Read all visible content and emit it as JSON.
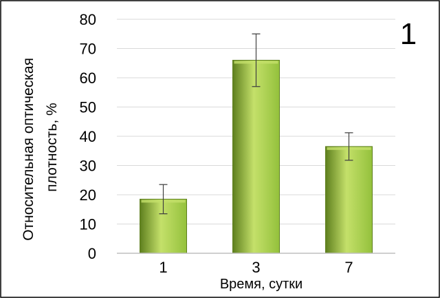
{
  "chart_data": {
    "type": "bar",
    "panel_label": "1",
    "categories": [
      "1",
      "3",
      "7"
    ],
    "values": [
      18.5,
      66,
      36.5
    ],
    "errors": [
      5,
      9,
      4.7
    ],
    "xlabel": "Время, сутки",
    "ylabel_lines": [
      "Относительная  оптическая",
      "плотность, %"
    ],
    "ylim": [
      0,
      80
    ],
    "yticks": [
      "0",
      "10",
      "20",
      "30",
      "40",
      "50",
      "60",
      "70",
      "80"
    ],
    "grid": true,
    "legend": "none",
    "colors": {
      "bar_light": "#c4e06a",
      "bar_mid": "#94c13c",
      "bar_dark": "#5e7f1e"
    }
  }
}
